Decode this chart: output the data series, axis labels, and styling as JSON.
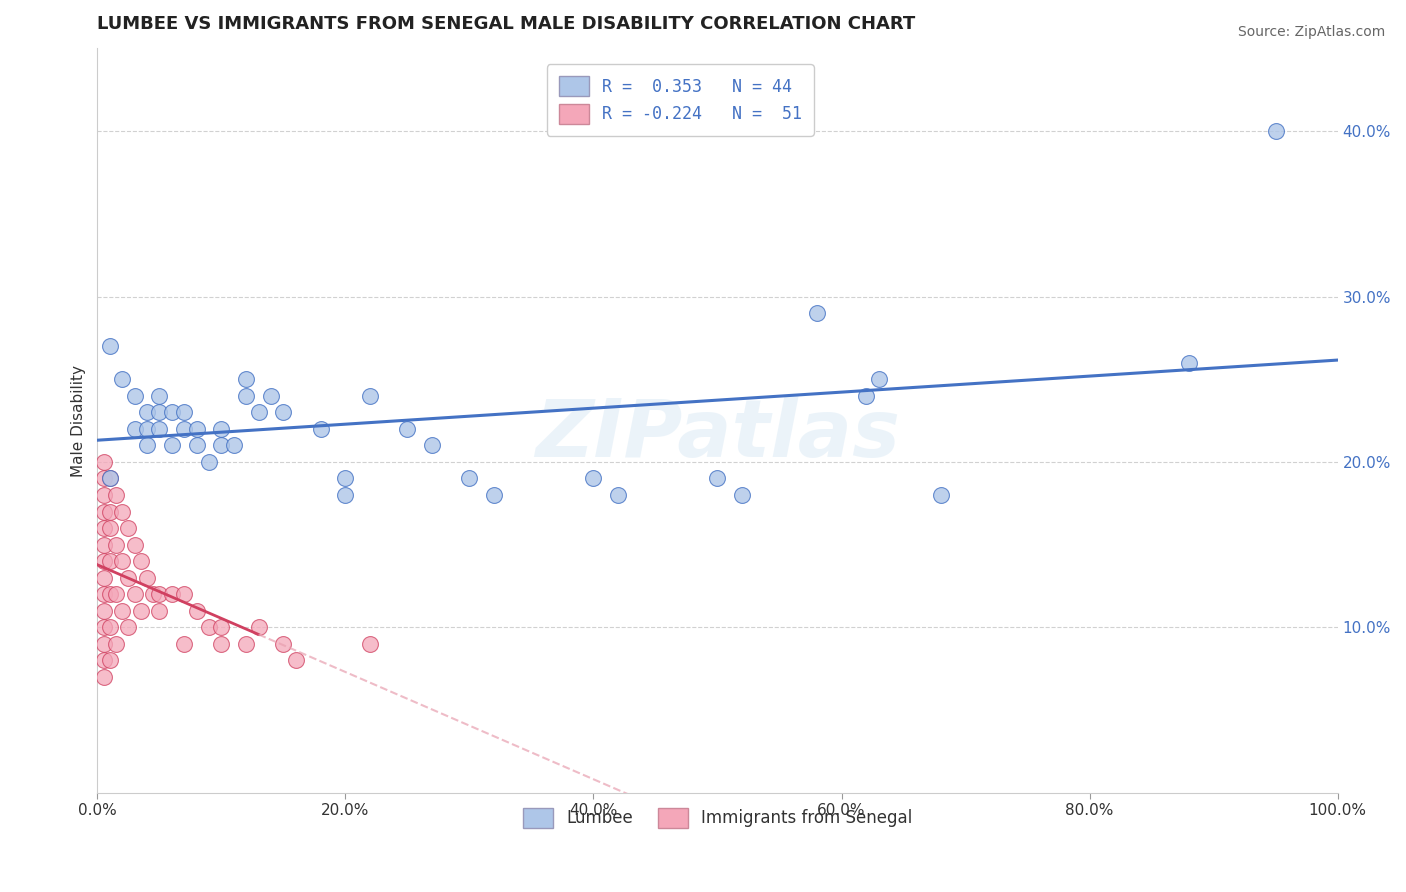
{
  "title": "LUMBEE VS IMMIGRANTS FROM SENEGAL MALE DISABILITY CORRELATION CHART",
  "source": "Source: ZipAtlas.com",
  "ylabel": "Male Disability",
  "watermark": "ZIPatlas",
  "legend_lumbee": "Lumbee",
  "legend_senegal": "Immigrants from Senegal",
  "r_lumbee": 0.353,
  "n_lumbee": 44,
  "r_senegal": -0.224,
  "n_senegal": 51,
  "xlim": [
    0,
    1.0
  ],
  "ylim": [
    0,
    0.45
  ],
  "x_ticks": [
    0.0,
    0.2,
    0.4,
    0.6,
    0.8,
    1.0
  ],
  "x_tick_labels": [
    "0.0%",
    "20.0%",
    "40.0%",
    "60.0%",
    "80.0%",
    "100.0%"
  ],
  "y_ticks": [
    0.1,
    0.2,
    0.3,
    0.4
  ],
  "y_tick_labels": [
    "10.0%",
    "20.0%",
    "30.0%",
    "40.0%"
  ],
  "color_lumbee": "#aec6e8",
  "color_senegal": "#f4a7b9",
  "line_color_lumbee": "#4472c4",
  "line_color_senegal": "#d04060",
  "line_color_senegal_dashed": "#e8a0b0",
  "title_color": "#222222",
  "source_color": "#666666",
  "legend_text_color": "#4472c4",
  "lumbee_points": [
    [
      0.01,
      0.27
    ],
    [
      0.01,
      0.19
    ],
    [
      0.02,
      0.25
    ],
    [
      0.03,
      0.24
    ],
    [
      0.03,
      0.22
    ],
    [
      0.04,
      0.23
    ],
    [
      0.04,
      0.22
    ],
    [
      0.04,
      0.21
    ],
    [
      0.05,
      0.24
    ],
    [
      0.05,
      0.23
    ],
    [
      0.05,
      0.22
    ],
    [
      0.06,
      0.23
    ],
    [
      0.06,
      0.21
    ],
    [
      0.07,
      0.23
    ],
    [
      0.07,
      0.22
    ],
    [
      0.08,
      0.22
    ],
    [
      0.08,
      0.21
    ],
    [
      0.09,
      0.2
    ],
    [
      0.1,
      0.22
    ],
    [
      0.1,
      0.21
    ],
    [
      0.11,
      0.21
    ],
    [
      0.12,
      0.25
    ],
    [
      0.12,
      0.24
    ],
    [
      0.13,
      0.23
    ],
    [
      0.14,
      0.24
    ],
    [
      0.15,
      0.23
    ],
    [
      0.18,
      0.22
    ],
    [
      0.2,
      0.19
    ],
    [
      0.2,
      0.18
    ],
    [
      0.22,
      0.24
    ],
    [
      0.25,
      0.22
    ],
    [
      0.27,
      0.21
    ],
    [
      0.3,
      0.19
    ],
    [
      0.32,
      0.18
    ],
    [
      0.4,
      0.19
    ],
    [
      0.42,
      0.18
    ],
    [
      0.5,
      0.19
    ],
    [
      0.52,
      0.18
    ],
    [
      0.58,
      0.29
    ],
    [
      0.62,
      0.24
    ],
    [
      0.63,
      0.25
    ],
    [
      0.68,
      0.18
    ],
    [
      0.88,
      0.26
    ],
    [
      0.95,
      0.4
    ]
  ],
  "senegal_points": [
    [
      0.005,
      0.2
    ],
    [
      0.005,
      0.19
    ],
    [
      0.005,
      0.18
    ],
    [
      0.005,
      0.17
    ],
    [
      0.005,
      0.16
    ],
    [
      0.005,
      0.15
    ],
    [
      0.005,
      0.14
    ],
    [
      0.005,
      0.13
    ],
    [
      0.005,
      0.12
    ],
    [
      0.005,
      0.11
    ],
    [
      0.005,
      0.1
    ],
    [
      0.005,
      0.09
    ],
    [
      0.005,
      0.08
    ],
    [
      0.005,
      0.07
    ],
    [
      0.01,
      0.19
    ],
    [
      0.01,
      0.17
    ],
    [
      0.01,
      0.16
    ],
    [
      0.01,
      0.14
    ],
    [
      0.01,
      0.12
    ],
    [
      0.01,
      0.1
    ],
    [
      0.01,
      0.08
    ],
    [
      0.015,
      0.18
    ],
    [
      0.015,
      0.15
    ],
    [
      0.015,
      0.12
    ],
    [
      0.015,
      0.09
    ],
    [
      0.02,
      0.17
    ],
    [
      0.02,
      0.14
    ],
    [
      0.02,
      0.11
    ],
    [
      0.025,
      0.16
    ],
    [
      0.025,
      0.13
    ],
    [
      0.025,
      0.1
    ],
    [
      0.03,
      0.15
    ],
    [
      0.03,
      0.12
    ],
    [
      0.035,
      0.14
    ],
    [
      0.035,
      0.11
    ],
    [
      0.04,
      0.13
    ],
    [
      0.045,
      0.12
    ],
    [
      0.05,
      0.12
    ],
    [
      0.05,
      0.11
    ],
    [
      0.06,
      0.12
    ],
    [
      0.07,
      0.12
    ],
    [
      0.07,
      0.09
    ],
    [
      0.08,
      0.11
    ],
    [
      0.09,
      0.1
    ],
    [
      0.1,
      0.1
    ],
    [
      0.1,
      0.09
    ],
    [
      0.12,
      0.09
    ],
    [
      0.13,
      0.1
    ],
    [
      0.15,
      0.09
    ],
    [
      0.16,
      0.08
    ],
    [
      0.22,
      0.09
    ]
  ],
  "background_color": "#ffffff",
  "grid_color": "#cccccc"
}
